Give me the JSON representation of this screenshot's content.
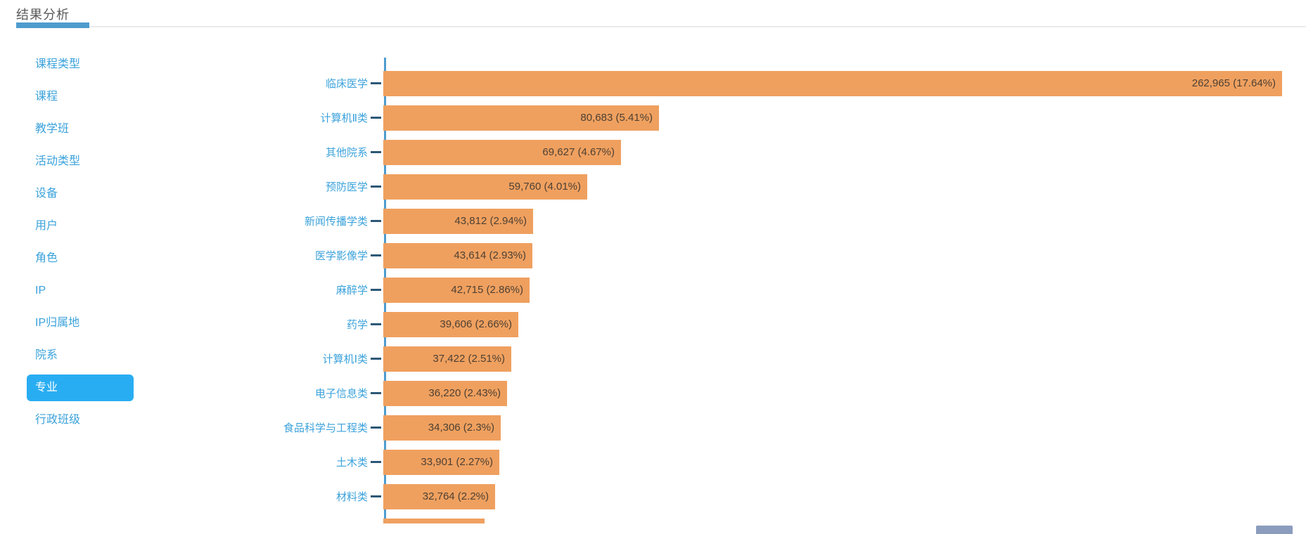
{
  "page": {
    "title": "结果分析"
  },
  "sidebar": {
    "items": [
      {
        "label": "课程类型",
        "selected": false
      },
      {
        "label": "课程",
        "selected": false
      },
      {
        "label": "教学班",
        "selected": false
      },
      {
        "label": "活动类型",
        "selected": false
      },
      {
        "label": "设备",
        "selected": false
      },
      {
        "label": "用户",
        "selected": false
      },
      {
        "label": "角色",
        "selected": false
      },
      {
        "label": "IP",
        "selected": false
      },
      {
        "label": "IP归属地",
        "selected": false
      },
      {
        "label": "院系",
        "selected": false
      },
      {
        "label": "专业",
        "selected": true
      },
      {
        "label": "行政班级",
        "selected": false
      }
    ],
    "selected_bg_color": "#29ADF2",
    "link_color": "#3BA2DB"
  },
  "chart_data": {
    "type": "bar",
    "orientation": "horizontal",
    "title": "",
    "xlabel": "",
    "ylabel": "",
    "categories": [
      "临床医学",
      "计算机Ⅱ类",
      "其他院系",
      "预防医学",
      "新闻传播学类",
      "医学影像学",
      "麻醉学",
      "药学",
      "计算机Ⅰ类",
      "电子信息类",
      "食品科学与工程类",
      "土木类",
      "材料类"
    ],
    "values": [
      262965,
      80683,
      69627,
      59760,
      43812,
      43614,
      42715,
      39606,
      37422,
      36220,
      34306,
      33901,
      32764
    ],
    "value_labels": [
      "262,965 (17.64%)",
      "80,683 (5.41%)",
      "69,627 (4.67%)",
      "59,760 (4.01%)",
      "43,812 (2.94%)",
      "43,614 (2.93%)",
      "42,715 (2.86%)",
      "39,606 (2.66%)",
      "37,422 (2.51%)",
      "36,220 (2.43%)",
      "34,306 (2.3%)",
      "33,901 (2.27%)",
      "32,764 (2.2%)"
    ],
    "cutoff_bar": {
      "visible": true,
      "approx_value": 29600,
      "label": "",
      "value_label": ""
    },
    "xlim": [
      0,
      262965
    ],
    "grid": false,
    "legend": false,
    "value_label_position": "inside-end",
    "bar_color": "#EFA05F",
    "axis_color": "#4E9CCE",
    "tick_color": "#2C5876",
    "value_text_color": "#4E4033",
    "category_text_color": "#3BA2DB"
  },
  "header": {
    "underline_color": "#4E9CCE",
    "divider_color": "#eaeaea",
    "title_color": "#595959"
  },
  "floating_widget": {
    "color": "#8B9CBD"
  }
}
